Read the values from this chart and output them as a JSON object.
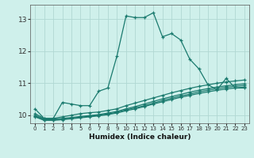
{
  "xlabel": "Humidex (Indice chaleur)",
  "background_color": "#cff0eb",
  "grid_color": "#b0d8d3",
  "line_color": "#1a7a6e",
  "x_values": [
    0,
    1,
    2,
    3,
    4,
    5,
    6,
    7,
    8,
    9,
    10,
    11,
    12,
    13,
    14,
    15,
    16,
    17,
    18,
    19,
    20,
    21,
    22,
    23
  ],
  "series1": [
    10.2,
    9.9,
    9.9,
    10.4,
    10.35,
    10.3,
    10.3,
    10.75,
    10.85,
    11.85,
    13.1,
    13.05,
    13.05,
    13.2,
    12.45,
    12.55,
    12.35,
    11.75,
    11.45,
    10.95,
    10.8,
    11.15,
    10.85,
    10.85
  ],
  "series2": [
    10.05,
    9.9,
    9.9,
    9.95,
    10.0,
    10.05,
    10.08,
    10.1,
    10.15,
    10.2,
    10.3,
    10.38,
    10.46,
    10.54,
    10.62,
    10.7,
    10.77,
    10.84,
    10.9,
    10.95,
    11.0,
    11.04,
    11.07,
    11.1
  ],
  "series3": [
    10.0,
    9.88,
    9.88,
    9.9,
    9.93,
    9.96,
    9.99,
    10.02,
    10.07,
    10.12,
    10.2,
    10.27,
    10.35,
    10.43,
    10.51,
    10.58,
    10.65,
    10.72,
    10.78,
    10.83,
    10.88,
    10.92,
    10.95,
    10.98
  ],
  "series4": [
    9.97,
    9.86,
    9.86,
    9.88,
    9.91,
    9.94,
    9.97,
    10.0,
    10.04,
    10.09,
    10.17,
    10.23,
    10.3,
    10.38,
    10.46,
    10.53,
    10.6,
    10.66,
    10.73,
    10.78,
    10.83,
    10.87,
    10.9,
    10.93
  ],
  "series5": [
    9.95,
    9.84,
    9.84,
    9.86,
    9.89,
    9.92,
    9.95,
    9.98,
    10.02,
    10.07,
    10.14,
    10.2,
    10.27,
    10.35,
    10.42,
    10.49,
    10.56,
    10.62,
    10.68,
    10.73,
    10.78,
    10.82,
    10.85,
    10.88
  ],
  "ylim": [
    9.75,
    13.45
  ],
  "xlim": [
    -0.5,
    23.5
  ],
  "yticks": [
    10,
    11,
    12,
    13
  ],
  "xticks": [
    0,
    1,
    2,
    3,
    4,
    5,
    6,
    7,
    8,
    9,
    10,
    11,
    12,
    13,
    14,
    15,
    16,
    17,
    18,
    19,
    20,
    21,
    22,
    23
  ]
}
